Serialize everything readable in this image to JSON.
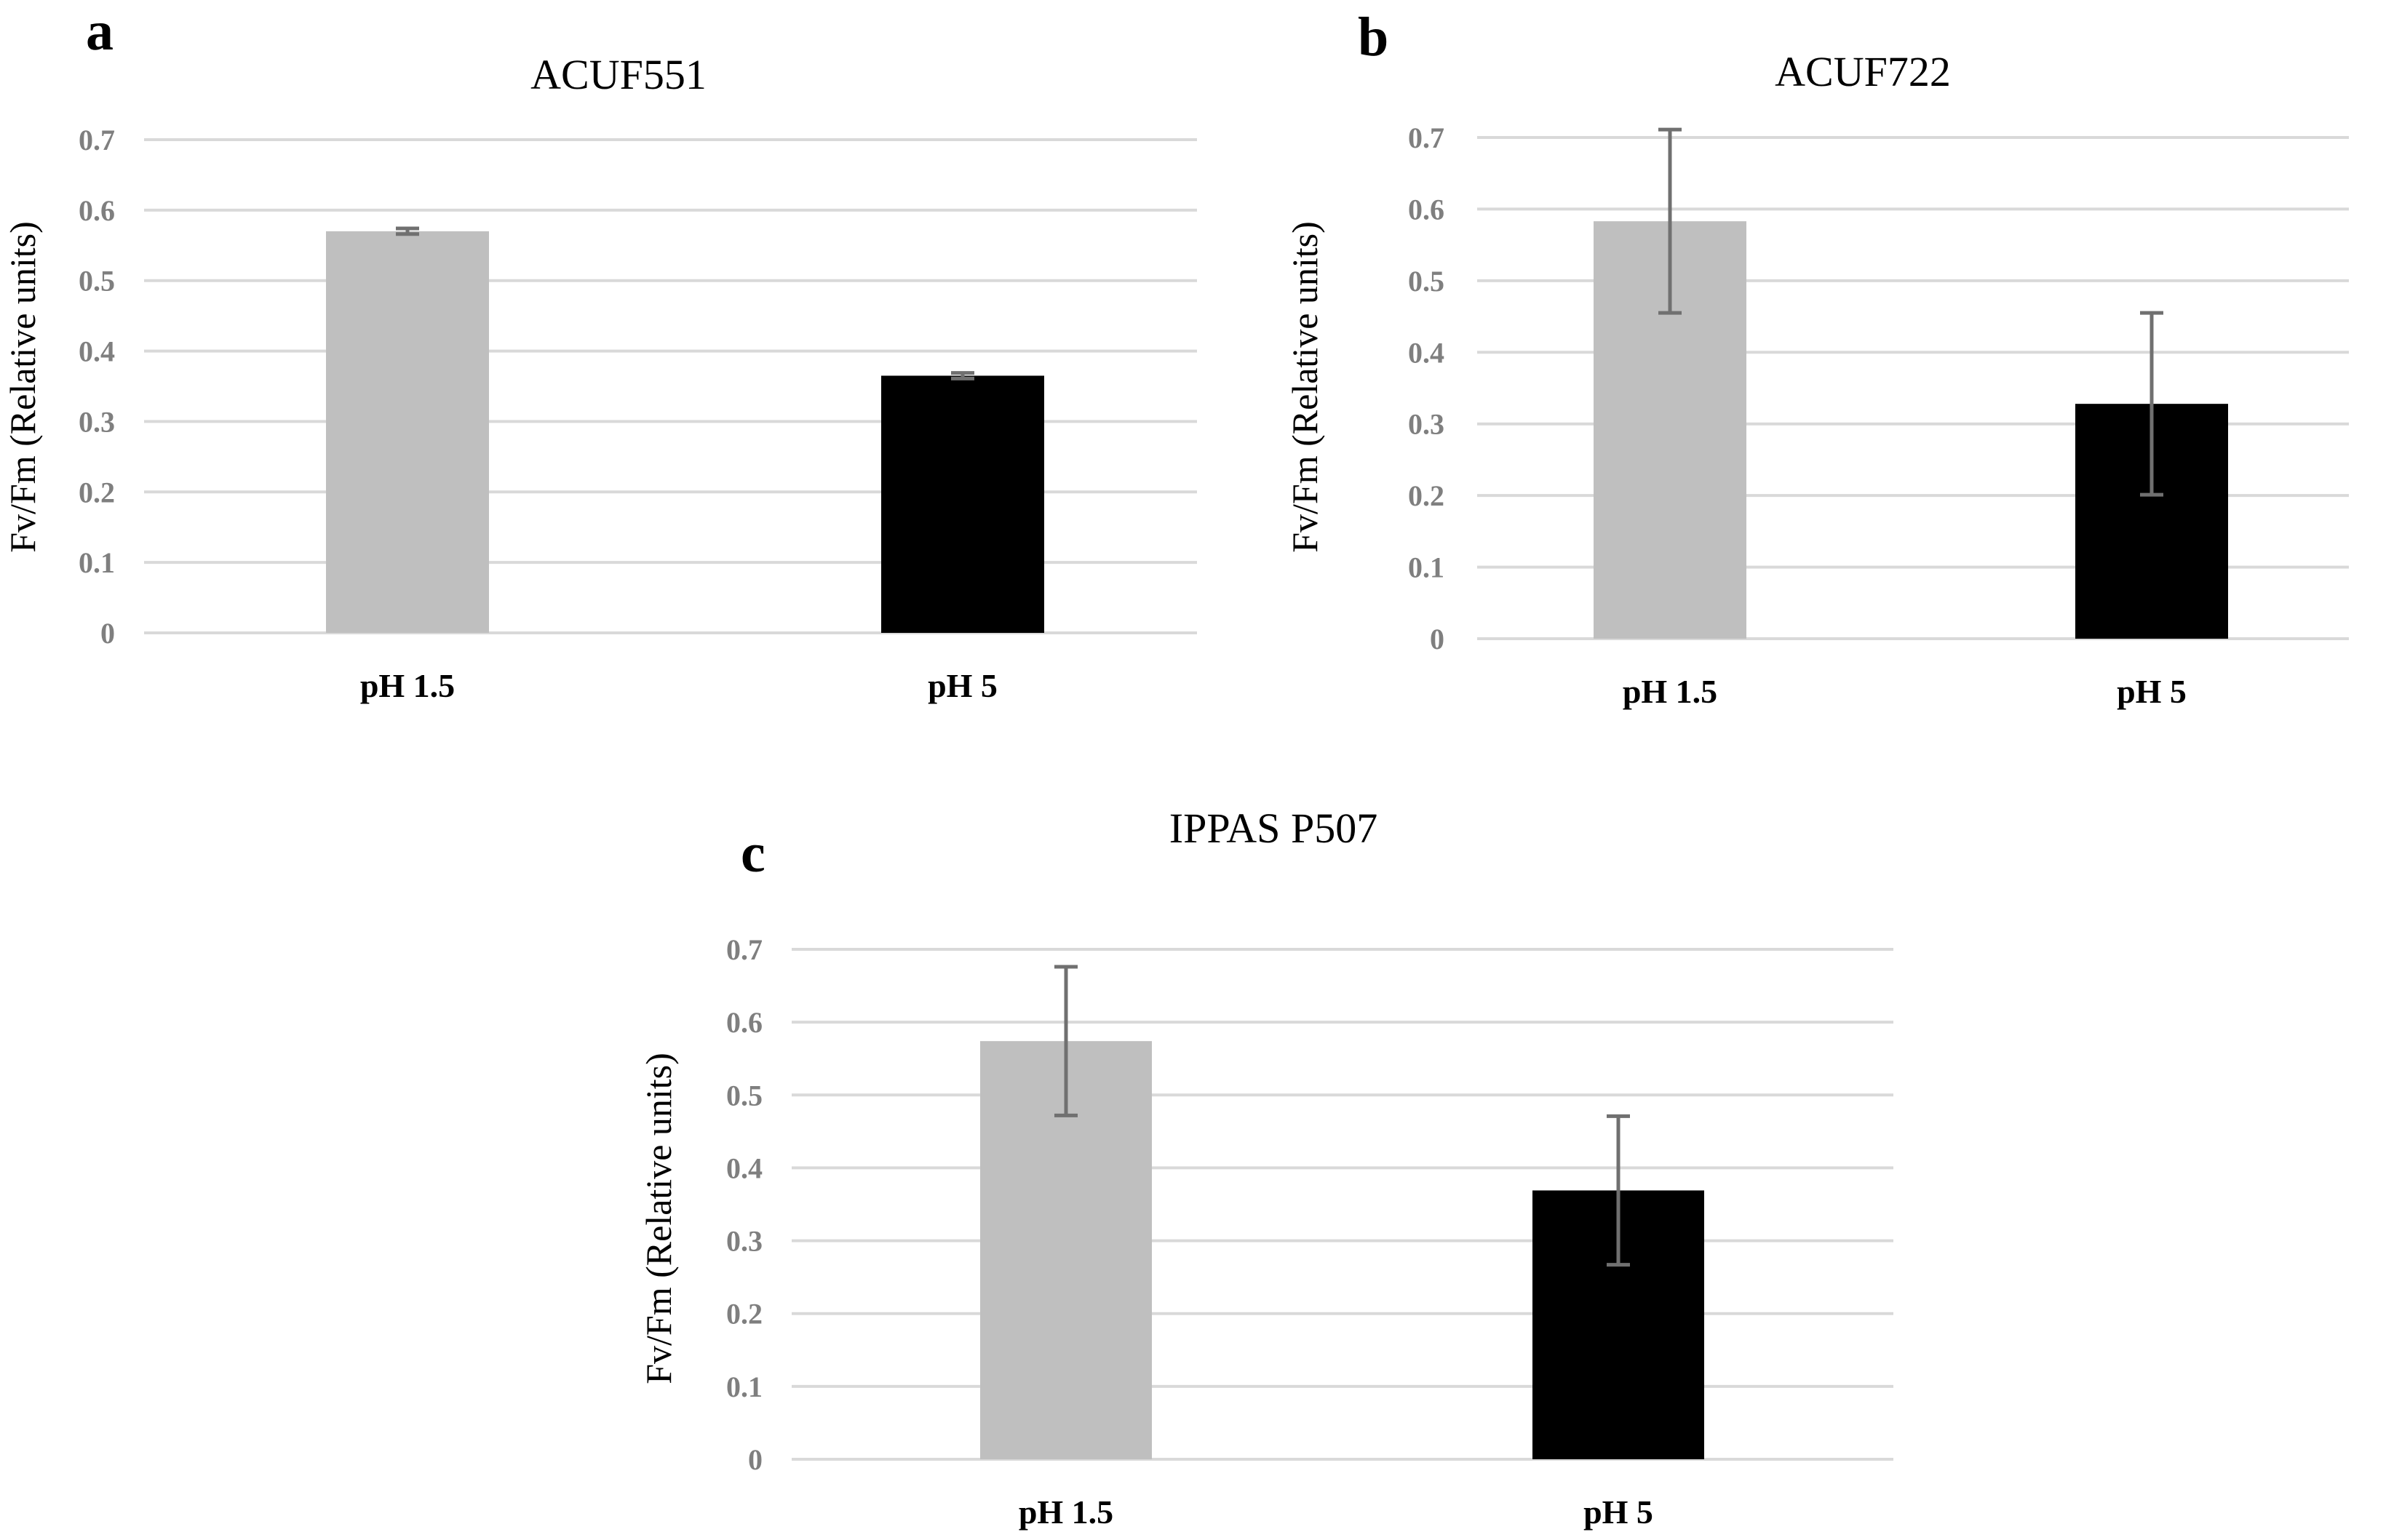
{
  "chart_data": [
    {
      "panel": "a",
      "type": "bar",
      "title": "ACUF551",
      "ylabel": "Fv/Fm (Relative units)",
      "xlabel": "",
      "categories": [
        "pH 1.5",
        "pH 5"
      ],
      "values": [
        0.57,
        0.365
      ],
      "errors": [
        0.004,
        0.004
      ],
      "ylim": [
        0,
        0.7
      ],
      "yticks": [
        "0",
        "0.1",
        "0.2",
        "0.3",
        "0.4",
        "0.5",
        "0.6",
        "0.7"
      ],
      "bar_colors": [
        "#bfbfbf",
        "#000000"
      ],
      "grid": true
    },
    {
      "panel": "b",
      "type": "bar",
      "title": "ACUF722",
      "ylabel": "Fv/Fm (Relative units)",
      "xlabel": "",
      "categories": [
        "pH 1.5",
        "pH 5"
      ],
      "values": [
        0.583,
        0.328
      ],
      "errors": [
        0.128,
        0.127
      ],
      "ylim": [
        0,
        0.7
      ],
      "yticks": [
        "0",
        "0.1",
        "0.2",
        "0.3",
        "0.4",
        "0.5",
        "0.6",
        "0.7"
      ],
      "bar_colors": [
        "#bfbfbf",
        "#000000"
      ],
      "grid": true
    },
    {
      "panel": "c",
      "type": "bar",
      "title": "IPPAS P507",
      "ylabel": "Fv/Fm (Relative units)",
      "xlabel": "",
      "categories": [
        "pH 1.5",
        "pH 5"
      ],
      "values": [
        0.574,
        0.369
      ],
      "errors": [
        0.102,
        0.102
      ],
      "ylim": [
        0,
        0.7
      ],
      "yticks": [
        "0",
        "0.1",
        "0.2",
        "0.3",
        "0.4",
        "0.5",
        "0.6",
        "0.7"
      ],
      "bar_colors": [
        "#bfbfbf",
        "#000000"
      ],
      "grid": true
    }
  ]
}
